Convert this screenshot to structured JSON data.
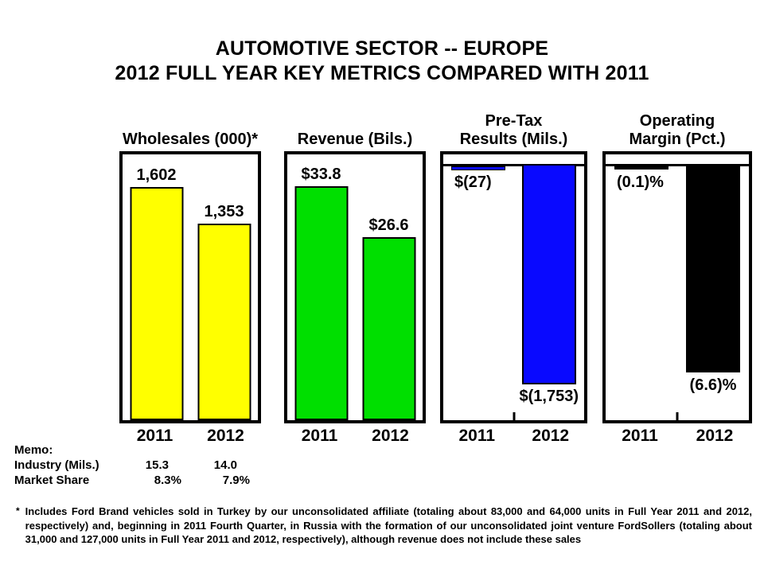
{
  "title": {
    "line1": "AUTOMOTIVE SECTOR -- EUROPE",
    "line2": "2012 FULL YEAR KEY METRICS COMPARED WITH 2011"
  },
  "panels": [
    {
      "header_lines": [
        "Wholesales (000)*"
      ],
      "bar_labels": [
        "1,602",
        "1,353"
      ],
      "years": [
        "2011",
        "2012"
      ],
      "color": "#FFFF00"
    },
    {
      "header_lines": [
        "Revenue (Bils.)"
      ],
      "bar_labels": [
        "$33.8",
        "$26.6"
      ],
      "years": [
        "2011",
        "2012"
      ],
      "color": "#00DF00"
    },
    {
      "header_lines": [
        "Pre-Tax",
        "Results (Mils.)"
      ],
      "bar_labels": [
        "$(27)",
        "$(1,753)"
      ],
      "years": [
        "2011",
        "2012"
      ],
      "color": "#0909FF"
    },
    {
      "header_lines": [
        "Operating",
        "Margin (Pct.)"
      ],
      "bar_labels": [
        "(0.1)%",
        "(6.6)%"
      ],
      "years": [
        "2011",
        "2012"
      ],
      "color": "#000000"
    }
  ],
  "memo": {
    "heading": "Memo:",
    "rows": [
      {
        "label": "Industry (Mils.)",
        "y2011": "15.3",
        "y2012": "14.0"
      },
      {
        "label": "Market Share",
        "y2011": "8.3%",
        "y2012": "7.9%"
      }
    ]
  },
  "footnote": {
    "marker": "*",
    "text": "Includes Ford Brand vehicles sold in Turkey by our unconsolidated affiliate (totaling about 83,000 and 64,000 units in Full Year 2011 and 2012, respectively) and, beginning in 2011 Fourth Quarter, in Russia with the formation of our unconsolidated joint venture FordSollers (totaling about 31,000 and 127,000 units in Full Year 2011 and 2012, respectively), although revenue does not include these sales"
  },
  "chart_data": [
    {
      "type": "bar",
      "title": "Wholesales (000)*",
      "categories": [
        "2011",
        "2012"
      ],
      "values": [
        1602,
        1353
      ],
      "data_labels": [
        "1,602",
        "1,353"
      ],
      "bar_color": "#FFFF00",
      "ylim": [
        0,
        1830
      ],
      "grid": false,
      "legend": "none"
    },
    {
      "type": "bar",
      "title": "Revenue (Bils.)",
      "categories": [
        "2011",
        "2012"
      ],
      "values": [
        33.8,
        26.6
      ],
      "data_labels": [
        "$33.8",
        "$26.6"
      ],
      "bar_color": "#00DF00",
      "ylim": [
        0,
        38.5
      ],
      "grid": false,
      "legend": "none"
    },
    {
      "type": "bar",
      "title": "Pre-Tax Results (Mils.)",
      "categories": [
        "2011",
        "2012"
      ],
      "values": [
        -27,
        -1753
      ],
      "data_labels": [
        "$(27)",
        "$(1,753)"
      ],
      "bar_color": "#0909FF",
      "ylim": [
        -2030,
        75
      ],
      "grid": false,
      "legend": "none"
    },
    {
      "type": "bar",
      "title": "Operating Margin (Pct.)",
      "categories": [
        "2011",
        "2012"
      ],
      "values": [
        -0.1,
        -6.6
      ],
      "data_labels": [
        "(0.1)%",
        "(6.6)%"
      ],
      "bar_color": "#000000",
      "ylim": [
        -8.1,
        0.3
      ],
      "grid": false,
      "legend": "none"
    }
  ]
}
